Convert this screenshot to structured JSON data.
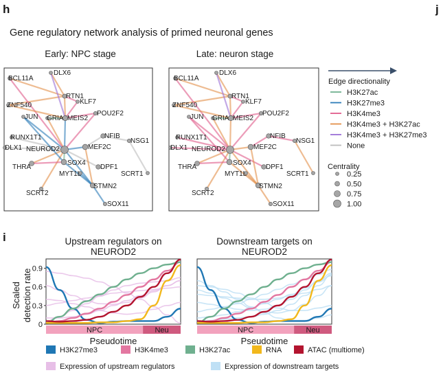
{
  "panel_h": {
    "letter": "h",
    "next_letter": "j",
    "title": "Gene regulatory network analysis of primed neuronal genes",
    "networks": [
      {
        "title": "Early: NPC stage"
      },
      {
        "title": "Late: neuron stage"
      }
    ],
    "genes": [
      "BCL11A",
      "DLX6",
      "RTN1",
      "KLF7",
      "ZNF540",
      "POU2F2",
      "JUN",
      "GRIA2",
      "RUNX1T1",
      "MEIS2",
      "NFIB",
      "NSG1",
      "DLX1",
      "NEUROD2",
      "MEF2C",
      "THRA",
      "SOX4",
      "DPF1",
      "MYT1L",
      "SCRT1",
      "SCRT2",
      "STMN2",
      "SOX11"
    ],
    "legend": {
      "title": "Edge directionality",
      "items": [
        {
          "label": "H3K27ac",
          "color": "#6fb08f"
        },
        {
          "label": "H3K27me3",
          "color": "#2b7cb8"
        },
        {
          "label": "H3K4me3",
          "color": "#e05c8a"
        },
        {
          "label": "H3K4me3 + H3K27ac",
          "color": "#e3904a"
        },
        {
          "label": "H3K4me3 + H3K27me3",
          "color": "#9b6fd6"
        },
        {
          "label": "None",
          "color": "#bdbdbd"
        }
      ],
      "centrality_title": "Centrality",
      "centrality_values": [
        "0.25",
        "0.50",
        "0.75",
        "1.00"
      ]
    }
  },
  "panel_i": {
    "letter": "i",
    "ylabel_line1": "Scaled",
    "ylabel_line2": "detection rate",
    "xlabel": "Pseudotime",
    "yticks": [
      "0",
      "0.3",
      "0.6",
      "0.9"
    ],
    "stages": [
      {
        "label": "NPC",
        "color": "#f2a2bd"
      },
      {
        "label": "Neu",
        "color": "#cf5a7f"
      }
    ],
    "plots": [
      {
        "title_line1": "Upstream  regulators on",
        "title_line2": "NEUROD2"
      },
      {
        "title_line1": "Downstream  targets on",
        "title_line2": "NEUROD2"
      }
    ],
    "legend": [
      {
        "label": "H3K27me3",
        "color": "#1f77b4"
      },
      {
        "label": "H3K4me3",
        "color": "#e377a1"
      },
      {
        "label": "H3K27ac",
        "color": "#6fb08f"
      },
      {
        "label": "RNA",
        "color": "#f2b81c"
      },
      {
        "label": "ATAC (multiome)",
        "color": "#b3142f"
      },
      {
        "label": "Expression of upstream regulators",
        "color": "#e7bfe7"
      },
      {
        "label": "Expression of downstream targets",
        "color": "#bfe0f5"
      }
    ]
  },
  "chart_data": [
    {
      "type": "line",
      "title": "Upstream  regulators on NEUROD2",
      "xlabel": "Pseudotime",
      "ylabel": "Scaled detection rate",
      "ylim": [
        0,
        1.05
      ],
      "xlim": [
        0,
        1
      ],
      "x": [
        0,
        0.1,
        0.2,
        0.3,
        0.4,
        0.5,
        0.6,
        0.7,
        0.8,
        0.9,
        1.0
      ],
      "series": [
        {
          "name": "H3K27me3",
          "values": [
            0.92,
            0.55,
            0.25,
            0.07,
            0.02,
            0.04,
            0.05,
            0.05,
            0.05,
            0.12,
            0.25
          ]
        },
        {
          "name": "H3K4me3",
          "values": [
            0.02,
            0.05,
            0.1,
            0.17,
            0.25,
            0.36,
            0.47,
            0.6,
            0.72,
            0.86,
            1.0
          ]
        },
        {
          "name": "H3K27ac",
          "values": [
            0.02,
            0.12,
            0.25,
            0.37,
            0.48,
            0.6,
            0.72,
            0.82,
            0.9,
            0.96,
            1.0
          ]
        },
        {
          "name": "RNA",
          "values": [
            0.02,
            0.02,
            0.02,
            0.02,
            0.03,
            0.03,
            0.05,
            0.08,
            0.3,
            0.7,
            0.95
          ]
        },
        {
          "name": "ATAC (multiome)",
          "values": [
            0.05,
            0.04,
            0.05,
            0.07,
            0.12,
            0.2,
            0.3,
            0.44,
            0.6,
            0.82,
            1.04
          ]
        },
        {
          "name": "Expression of upstream regulators",
          "values": [
            0.85,
            0.82,
            0.78,
            0.74,
            0.68,
            0.6,
            0.5,
            0.4,
            0.28,
            0.15,
            0.02
          ]
        },
        {
          "name": "Expression of upstream regulators",
          "values": [
            0.05,
            0.12,
            0.22,
            0.33,
            0.45,
            0.55,
            0.62,
            0.66,
            0.68,
            0.7,
            0.75
          ]
        },
        {
          "name": "Expression of upstream regulators",
          "values": [
            0.62,
            0.55,
            0.46,
            0.38,
            0.33,
            0.32,
            0.35,
            0.42,
            0.52,
            0.62,
            0.7
          ]
        },
        {
          "name": "Expression of upstream regulators",
          "values": [
            0.4,
            0.38,
            0.33,
            0.28,
            0.22,
            0.18,
            0.16,
            0.18,
            0.24,
            0.3,
            0.35
          ]
        },
        {
          "name": "Expression of upstream regulators",
          "values": [
            0.1,
            0.1,
            0.12,
            0.16,
            0.22,
            0.3,
            0.38,
            0.46,
            0.54,
            0.62,
            0.7
          ]
        },
        {
          "name": "Expression of upstream regulators",
          "values": [
            0.3,
            0.34,
            0.38,
            0.42,
            0.46,
            0.5,
            0.52,
            0.54,
            0.56,
            0.58,
            0.6
          ]
        }
      ]
    },
    {
      "type": "line",
      "title": "Downstream  targets on NEUROD2",
      "xlabel": "Pseudotime",
      "ylabel": "Scaled detection rate",
      "ylim": [
        0,
        1.05
      ],
      "xlim": [
        0,
        1
      ],
      "x": [
        0,
        0.1,
        0.2,
        0.3,
        0.4,
        0.5,
        0.6,
        0.7,
        0.8,
        0.9,
        1.0
      ],
      "series": [
        {
          "name": "H3K27me3",
          "values": [
            0.92,
            0.55,
            0.25,
            0.07,
            0.02,
            0.04,
            0.05,
            0.05,
            0.05,
            0.12,
            0.25
          ]
        },
        {
          "name": "H3K4me3",
          "values": [
            0.02,
            0.05,
            0.1,
            0.17,
            0.25,
            0.36,
            0.47,
            0.6,
            0.72,
            0.86,
            1.0
          ]
        },
        {
          "name": "H3K27ac",
          "values": [
            0.02,
            0.12,
            0.25,
            0.37,
            0.48,
            0.6,
            0.72,
            0.82,
            0.9,
            0.96,
            1.0
          ]
        },
        {
          "name": "RNA",
          "values": [
            0.02,
            0.02,
            0.02,
            0.02,
            0.03,
            0.03,
            0.05,
            0.08,
            0.3,
            0.7,
            0.95
          ]
        },
        {
          "name": "ATAC (multiome)",
          "values": [
            0.05,
            0.04,
            0.05,
            0.07,
            0.12,
            0.2,
            0.3,
            0.44,
            0.6,
            0.82,
            1.04
          ]
        },
        {
          "name": "Expression of downstream targets",
          "values": [
            0.7,
            0.62,
            0.52,
            0.4,
            0.28,
            0.18,
            0.1,
            0.06,
            0.06,
            0.1,
            0.15
          ]
        },
        {
          "name": "Expression of downstream targets",
          "values": [
            0.55,
            0.5,
            0.42,
            0.34,
            0.26,
            0.2,
            0.18,
            0.22,
            0.32,
            0.46,
            0.62
          ]
        },
        {
          "name": "Expression of downstream targets",
          "values": [
            0.2,
            0.24,
            0.28,
            0.33,
            0.4,
            0.48,
            0.56,
            0.64,
            0.72,
            0.8,
            0.88
          ]
        },
        {
          "name": "Expression of downstream targets",
          "values": [
            0.35,
            0.32,
            0.28,
            0.24,
            0.22,
            0.24,
            0.3,
            0.4,
            0.55,
            0.7,
            0.82
          ]
        },
        {
          "name": "Expression of downstream targets",
          "values": [
            0.1,
            0.12,
            0.15,
            0.2,
            0.26,
            0.33,
            0.4,
            0.48,
            0.58,
            0.68,
            0.78
          ]
        },
        {
          "name": "Expression of downstream targets",
          "values": [
            0.48,
            0.46,
            0.44,
            0.42,
            0.4,
            0.4,
            0.42,
            0.46,
            0.5,
            0.56,
            0.62
          ]
        },
        {
          "name": "Expression of downstream targets",
          "values": [
            0.05,
            0.06,
            0.08,
            0.1,
            0.12,
            0.16,
            0.22,
            0.32,
            0.46,
            0.62,
            0.8
          ]
        },
        {
          "name": "Expression of downstream targets",
          "values": [
            0.62,
            0.6,
            0.56,
            0.5,
            0.42,
            0.34,
            0.26,
            0.22,
            0.22,
            0.26,
            0.3
          ]
        }
      ]
    }
  ]
}
